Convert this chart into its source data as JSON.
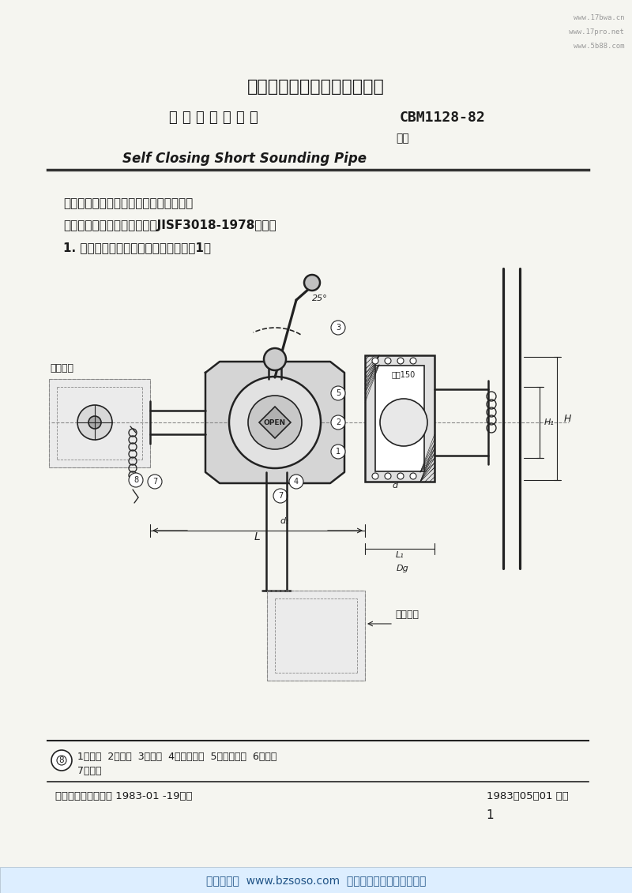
{
  "title_main": "中国船舶工业总公司外贸标准",
  "title_sub_left": "自 闭 式 测 量 管 头",
  "title_sub_right": "CBM1128-82",
  "replace_label": "代替",
  "english_title": "Self Closing Short Sounding Pipe",
  "desc1": "本标准适用于船舶机仓或其它仓室处所。",
  "desc2": "本标准结构长度和连接尺寸与JISF3018-1978一致。",
  "desc3": "1. 基本参数、结构形式和尺寸按图及表1。",
  "parts_label": "1、本体  2、塞芯  3、帽罩  4、锁紧螺栓  5、操纵手柄  6、重锤",
  "parts_label2": "7、链条",
  "footer_left": "中国船舶工业总公司 1983-01 -19发布",
  "footer_right": "1983－05－01 实施",
  "page_num": "1",
  "watermarks": [
    "www.17bwa.cn",
    "www.17pro.net",
    "www.5b88.com"
  ],
  "bottom_banner": "标准搜搜网  www.bzsoso.com  各类标准行业资料免费下载",
  "bg_color": "#f5f5f0",
  "text_color": "#1a1a1a",
  "light_gray": "#cccccc",
  "dark_line": "#333333"
}
